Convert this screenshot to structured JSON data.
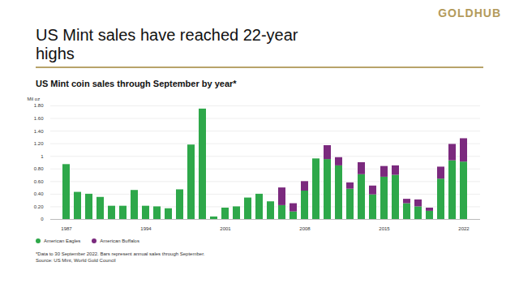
{
  "chart_data": {
    "type": "bar",
    "logo_text": "GOLDHUB",
    "title": "US Mint sales have reached 22-year highs",
    "subtitle": "US Mint coin sales through September by year*",
    "y_label": "Mil oz",
    "notes": [
      "*Data to 30 September 2022. Bars represent annual sales through September.",
      "Source: US Mint, World Gold Council"
    ],
    "stacked": true,
    "grid": true,
    "legend": "bottom-left",
    "categories": [
      "1987",
      null,
      null,
      null,
      null,
      null,
      null,
      "1994",
      null,
      null,
      null,
      null,
      null,
      null,
      "2001",
      null,
      null,
      null,
      null,
      null,
      null,
      "2008",
      null,
      null,
      null,
      null,
      null,
      null,
      "2015",
      null,
      null,
      null,
      null,
      null,
      null,
      "2022"
    ],
    "series": [
      {
        "name": "American Eagles",
        "color": "#2ea84a",
        "values": [
          0.87,
          0.43,
          0.4,
          0.35,
          0.21,
          0.21,
          0.46,
          0.21,
          0.2,
          0.17,
          0.47,
          1.18,
          1.75,
          0.04,
          0.18,
          0.2,
          0.34,
          0.4,
          0.28,
          0.22,
          0.12,
          0.45,
          0.96,
          0.95,
          0.85,
          0.48,
          0.71,
          0.39,
          0.67,
          0.7,
          0.25,
          0.2,
          0.13,
          0.64,
          0.93,
          0.91
        ]
      },
      {
        "name": "American Buffalos",
        "color": "#7b2a7e",
        "values": [
          0,
          0,
          0,
          0,
          0,
          0,
          0,
          0,
          0,
          0,
          0,
          0,
          0,
          0,
          0,
          0,
          0,
          0,
          0,
          0.28,
          0.13,
          0.15,
          0,
          0.22,
          0.13,
          0.1,
          0.19,
          0.14,
          0.17,
          0.15,
          0.07,
          0.11,
          0.05,
          0.19,
          0.26,
          0.37
        ]
      }
    ],
    "ylim": [
      0,
      1.8
    ],
    "yticks": [
      0,
      {
        "value": 0.2,
        "label": "0.20"
      },
      {
        "value": 0.4,
        "label": "0.40"
      },
      {
        "value": 0.6,
        "label": "0.60"
      },
      {
        "value": 0.8,
        "label": "0.80"
      },
      1,
      {
        "value": 1.2,
        "label": "1.20"
      },
      {
        "value": 1.4,
        "label": "1.40"
      },
      {
        "value": 1.6,
        "label": "1.60"
      },
      {
        "value": 1.8,
        "label": "1.80"
      }
    ]
  }
}
